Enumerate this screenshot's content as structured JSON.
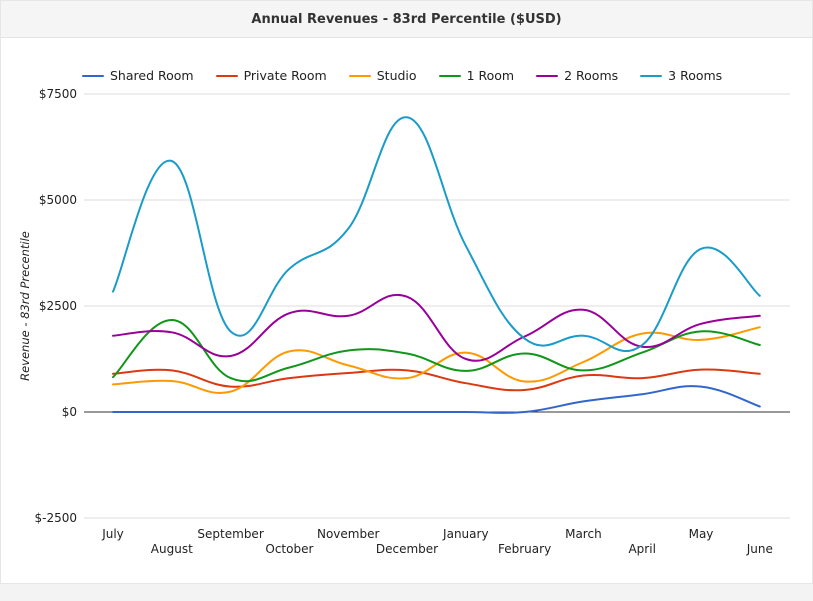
{
  "header": {
    "title": "Annual Revenues - 83rd Percentile ($USD)"
  },
  "colors": {
    "shared_room": "#3366cc",
    "private_room": "#dc3912",
    "studio": "#ff9900",
    "one_room": "#109618",
    "two_rooms": "#990099",
    "three_rooms": "#1a9cc8"
  },
  "chart_data": {
    "type": "line",
    "title": "Annual Revenues - 83rd Percentile ($USD)",
    "xlabel": "",
    "ylabel": "Revenue - 83rd Precentile",
    "ylim": [
      -2500,
      7500
    ],
    "y_ticks": [
      "$7500",
      "$5000",
      "$2500",
      "$0",
      "$-2500"
    ],
    "y_tick_values": [
      7500,
      5000,
      2500,
      0,
      -2500
    ],
    "grid": true,
    "legend_position": "top",
    "categories": [
      "July",
      "August",
      "September",
      "October",
      "November",
      "December",
      "January",
      "February",
      "March",
      "April",
      "May",
      "June"
    ],
    "series": [
      {
        "name": "Shared Room",
        "color": "#3366cc",
        "values": [
          0,
          0,
          0,
          0,
          0,
          0,
          0,
          0,
          250,
          420,
          600,
          130
        ]
      },
      {
        "name": "Private Room",
        "color": "#dc3912",
        "values": [
          900,
          980,
          600,
          800,
          920,
          980,
          680,
          520,
          860,
          800,
          1000,
          900
        ]
      },
      {
        "name": "Studio",
        "color": "#ff9900",
        "values": [
          650,
          730,
          480,
          1430,
          1100,
          800,
          1400,
          720,
          1180,
          1850,
          1700,
          2000
        ]
      },
      {
        "name": "1 Room",
        "color": "#109618",
        "values": [
          820,
          2170,
          800,
          1050,
          1450,
          1380,
          970,
          1380,
          980,
          1400,
          1900,
          1580
        ]
      },
      {
        "name": "2 Rooms",
        "color": "#990099",
        "values": [
          1800,
          1880,
          1320,
          2330,
          2270,
          2720,
          1250,
          1780,
          2410,
          1540,
          2080,
          2270
        ]
      },
      {
        "name": "3 Rooms",
        "color": "#1a9cc8",
        "values": [
          2840,
          5920,
          1900,
          3380,
          4320,
          6950,
          3920,
          1730,
          1800,
          1580,
          3850,
          2740
        ]
      }
    ]
  }
}
